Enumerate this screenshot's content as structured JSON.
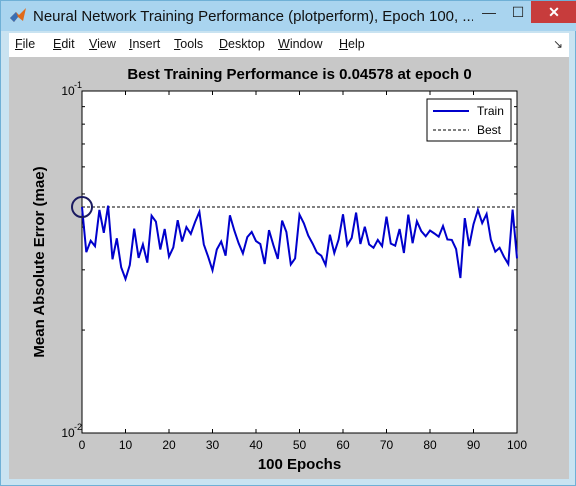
{
  "window": {
    "title": "Neural Network Training Performance (plotperform), Epoch 100, ...",
    "minimize_glyph": "—",
    "maximize_glyph": "☐",
    "close_glyph": "✕"
  },
  "menu": {
    "items": [
      {
        "label": "File",
        "key": "F"
      },
      {
        "label": "Edit",
        "key": "E"
      },
      {
        "label": "View",
        "key": "V"
      },
      {
        "label": "Insert",
        "key": "I"
      },
      {
        "label": "Tools",
        "key": "T"
      },
      {
        "label": "Desktop",
        "key": "D"
      },
      {
        "label": "Window",
        "key": "W"
      },
      {
        "label": "Help",
        "key": "H"
      }
    ],
    "dock_glyph": "↘"
  },
  "colors": {
    "train": "#0000cc",
    "best": "#000000",
    "close_button": "#c73c3c",
    "titlebar": "#a9d4ef"
  },
  "chart_data": {
    "type": "line",
    "title": "Best Training Performance is 0.04578 at epoch 0",
    "xlabel": "100 Epochs",
    "ylabel": "Mean Absolute Error  (mae)",
    "xlim": [
      0,
      100
    ],
    "ylim": [
      0.01,
      0.1
    ],
    "yscale": "log",
    "xticks": [
      0,
      10,
      20,
      30,
      40,
      50,
      60,
      70,
      80,
      90,
      100
    ],
    "yticks": [
      {
        "value": 0.1,
        "base": "10",
        "exp": "-1"
      },
      {
        "value": 0.01,
        "base": "10",
        "exp": "-2"
      }
    ],
    "legend_position": "top-right",
    "series": [
      {
        "name": "Train",
        "style": "solid",
        "x": [
          0,
          1,
          2,
          3,
          4,
          5,
          6,
          7,
          8,
          9,
          10,
          11,
          12,
          13,
          14,
          15,
          16,
          17,
          18,
          19,
          20,
          21,
          22,
          23,
          24,
          25,
          26,
          27,
          28,
          29,
          30,
          31,
          32,
          33,
          34,
          35,
          36,
          37,
          38,
          39,
          40,
          41,
          42,
          43,
          44,
          45,
          46,
          47,
          48,
          49,
          50,
          51,
          52,
          53,
          54,
          55,
          56,
          57,
          58,
          59,
          60,
          61,
          62,
          63,
          64,
          65,
          66,
          67,
          68,
          69,
          70,
          71,
          72,
          73,
          74,
          75,
          76,
          77,
          78,
          79,
          80,
          81,
          82,
          83,
          84,
          85,
          86,
          87,
          88,
          89,
          90,
          91,
          92,
          93,
          94,
          95,
          96,
          97,
          98,
          99,
          100
        ],
        "values": [
          0.0458,
          0.0338,
          0.0365,
          0.0352,
          0.0449,
          0.0385,
          0.0462,
          0.0322,
          0.0371,
          0.0305,
          0.0282,
          0.031,
          0.0396,
          0.0325,
          0.0356,
          0.0315,
          0.0432,
          0.0415,
          0.0344,
          0.0395,
          0.0328,
          0.0349,
          0.0419,
          0.0363,
          0.04,
          0.0382,
          0.0414,
          0.0443,
          0.0356,
          0.0328,
          0.0299,
          0.0344,
          0.0363,
          0.033,
          0.0433,
          0.0391,
          0.0359,
          0.0335,
          0.0374,
          0.0387,
          0.0364,
          0.0357,
          0.0312,
          0.0392,
          0.0354,
          0.0323,
          0.0418,
          0.0387,
          0.0311,
          0.0324,
          0.0435,
          0.041,
          0.0378,
          0.0358,
          0.0337,
          0.033,
          0.031,
          0.038,
          0.0336,
          0.0368,
          0.0436,
          0.0354,
          0.0372,
          0.0441,
          0.0357,
          0.0401,
          0.0356,
          0.0348,
          0.0367,
          0.0352,
          0.0429,
          0.0358,
          0.0353,
          0.0395,
          0.0336,
          0.0435,
          0.0359,
          0.0416,
          0.0389,
          0.0376,
          0.0391,
          0.0383,
          0.0375,
          0.0403,
          0.0368,
          0.0367,
          0.0345,
          0.0284,
          0.0425,
          0.0352,
          0.0408,
          0.0449,
          0.0411,
          0.0437,
          0.0367,
          0.0339,
          0.0348,
          0.0328,
          0.0312,
          0.045,
          0.0324
        ]
      },
      {
        "name": "Best",
        "style": "dashed",
        "value": 0.04578
      }
    ],
    "best_marker": {
      "x": 0,
      "value": 0.04578
    }
  }
}
